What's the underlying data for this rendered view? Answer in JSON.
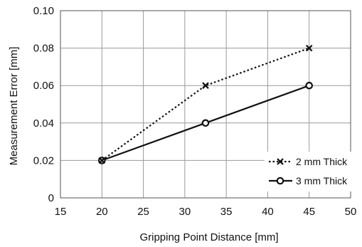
{
  "chart_data": {
    "type": "line",
    "title": "",
    "xlabel": "Gripping Point Distance [mm]",
    "ylabel": "Measurement Error [mm]",
    "xlim": [
      15,
      50
    ],
    "ylim": [
      0,
      0.1
    ],
    "xticks": [
      15,
      20,
      25,
      30,
      35,
      40,
      45,
      50
    ],
    "yticks": [
      0,
      0.02,
      0.04,
      0.06,
      0.08,
      0.1
    ],
    "xtick_labels": [
      "15",
      "20",
      "25",
      "30",
      "35",
      "40",
      "45",
      "50"
    ],
    "ytick_labels": [
      "0",
      "0.02",
      "0.04",
      "0.06",
      "0.08",
      "0.10"
    ],
    "grid": true,
    "legend_position": "bottom-right",
    "series": [
      {
        "name": "2 mm Thick",
        "line_style": "dotted",
        "marker": "x",
        "color": "#111111",
        "x": [
          20,
          32.5,
          45
        ],
        "y": [
          0.02,
          0.06,
          0.08
        ]
      },
      {
        "name": "3 mm Thick",
        "line_style": "solid",
        "marker": "circle",
        "color": "#111111",
        "x": [
          20,
          32.5,
          45
        ],
        "y": [
          0.02,
          0.04,
          0.06
        ]
      }
    ]
  }
}
